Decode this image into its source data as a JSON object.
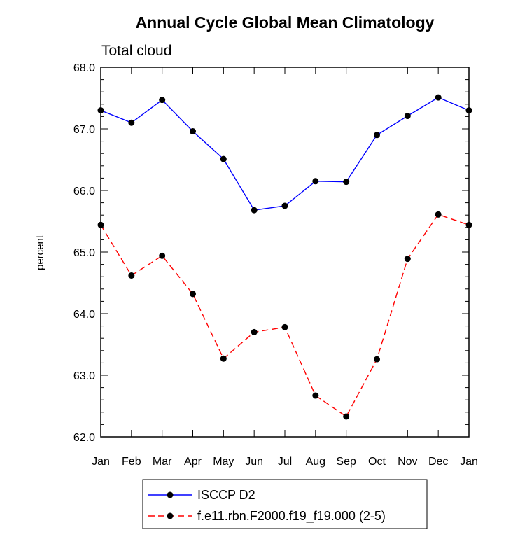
{
  "chart_data": {
    "type": "line",
    "title": "Annual Cycle Global Mean Climatology",
    "subtitle": "Total cloud",
    "xlabel": "",
    "ylabel": "percent",
    "categories": [
      "Jan",
      "Feb",
      "Mar",
      "Apr",
      "May",
      "Jun",
      "Jul",
      "Aug",
      "Sep",
      "Oct",
      "Nov",
      "Dec",
      "Jan"
    ],
    "ylim": [
      62.0,
      68.0
    ],
    "yticks": [
      "62.0",
      "63.0",
      "64.0",
      "65.0",
      "66.0",
      "67.0",
      "68.0"
    ],
    "grid": false,
    "legend_position": "bottom-center",
    "series": [
      {
        "name": "ISCCP D2",
        "color": "#0000ff",
        "dash": "solid",
        "marker": "circle",
        "values": [
          67.3,
          67.1,
          67.47,
          66.96,
          66.51,
          65.68,
          65.75,
          66.15,
          66.14,
          66.9,
          67.21,
          67.51,
          67.3
        ]
      },
      {
        "name": "f.e11.rbn.F2000.f19_f19.000 (2-5)",
        "color": "#ff0000",
        "dash": "dashed",
        "marker": "circle",
        "values": [
          65.44,
          64.62,
          64.94,
          64.32,
          63.27,
          63.7,
          63.78,
          62.67,
          62.33,
          63.26,
          64.89,
          65.61,
          65.44
        ]
      }
    ]
  }
}
